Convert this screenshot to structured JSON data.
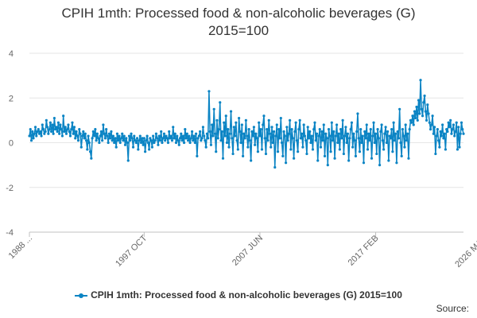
{
  "chart_data": {
    "type": "line",
    "title": "CPIH 1mth: Processed food & non-alcoholic beverages (G)",
    "subtitle": "2015=100",
    "xlabel": "",
    "ylabel": "",
    "x_tick_labels": [
      "1988 ...",
      "1997 OCT",
      "2007 JUN",
      "2017 FEB",
      "2026 MAR"
    ],
    "x_tick_index": [
      0,
      115,
      231,
      347,
      456
    ],
    "y_ticks": [
      4,
      2,
      0,
      -2,
      -4
    ],
    "ylim": [
      -4,
      4
    ],
    "grid": "horizontal",
    "legend_position": "bottom",
    "series": [
      {
        "name": "CPIH 1mth: Processed food & non-alcoholic beverages (G) 2015=100",
        "color": "#0b84c4",
        "values": [
          0.3,
          0.6,
          0.1,
          0.5,
          0.2,
          0.4,
          0.7,
          0.3,
          0.5,
          0.6,
          0.4,
          0.5,
          0.3,
          0.8,
          0.6,
          0.4,
          0.5,
          1.0,
          0.7,
          0.4,
          0.6,
          0.9,
          0.5,
          0.8,
          0.4,
          1.1,
          0.6,
          0.7,
          0.5,
          0.9,
          0.4,
          0.8,
          0.6,
          0.3,
          1.2,
          0.5,
          0.7,
          0.4,
          0.6,
          0.8,
          0.5,
          0.3,
          0.6,
          0.9,
          0.4,
          0.7,
          0.2,
          0.5,
          0.3,
          0.1,
          0.6,
          0.4,
          -0.2,
          0.3,
          0.5,
          0.2,
          0.4,
          0.1,
          -0.3,
          0.3,
          0.0,
          -0.4,
          -0.7,
          0.2,
          0.5,
          0.3,
          0.6,
          0.1,
          0.4,
          0.2,
          0.0,
          0.3,
          0.5,
          0.1,
          0.8,
          0.4,
          0.2,
          0.6,
          0.3,
          0.0,
          0.4,
          0.2,
          0.5,
          0.1,
          0.3,
          0.0,
          0.2,
          -0.2,
          0.4,
          0.1,
          0.3,
          0.0,
          0.2,
          0.4,
          0.1,
          0.3,
          -0.1,
          0.2,
          0.0,
          -0.8,
          0.3,
          0.1,
          0.4,
          0.2,
          -0.2,
          0.3,
          0.1,
          0.0,
          0.2,
          -0.3,
          0.1,
          0.3,
          0.0,
          0.2,
          -0.1,
          0.2,
          -0.4,
          0.1,
          0.3,
          0.0,
          -0.3,
          0.2,
          0.1,
          -0.2,
          0.3,
          0.0,
          0.1,
          0.4,
          0.2,
          -0.1,
          0.3,
          0.1,
          0.5,
          0.0,
          0.2,
          0.4,
          0.1,
          0.3,
          0.2,
          0.0,
          0.5,
          0.2,
          0.3,
          0.1,
          0.7,
          0.2,
          0.4,
          0.0,
          0.3,
          0.1,
          -0.1,
          0.2,
          0.4,
          0.1,
          0.3,
          0.0,
          0.6,
          0.2,
          0.4,
          0.1,
          0.3,
          0.0,
          0.2,
          0.5,
          0.1,
          0.3,
          0.0,
          0.4,
          -0.6,
          0.2,
          0.3,
          0.5,
          0.1,
          0.2,
          0.7,
          0.3,
          0.1,
          -0.2,
          0.4,
          0.2,
          2.3,
          0.5,
          -0.1,
          0.8,
          0.3,
          1.5,
          0.4,
          -0.4,
          1.0,
          0.2,
          0.6,
          1.8,
          0.1,
          0.5,
          -0.7,
          0.9,
          0.3,
          1.2,
          0.0,
          0.6,
          -0.2,
          0.4,
          1.4,
          0.2,
          -0.5,
          0.7,
          0.3,
          0.9,
          0.1,
          -0.3,
          1.1,
          0.5,
          0.0,
          0.8,
          -0.6,
          0.4,
          0.2,
          1.0,
          0.3,
          -0.2,
          0.6,
          0.1,
          -0.8,
          0.5,
          0.3,
          0.7,
          -0.1,
          0.4,
          0.2,
          -0.4,
          0.9,
          0.3,
          0.6,
          -0.3,
          0.8,
          1.2,
          0.2,
          -0.5,
          0.6,
          0.1,
          1.0,
          0.4,
          -0.2,
          0.7,
          0.0,
          0.5,
          -1.1,
          0.3,
          0.8,
          -0.4,
          0.6,
          0.2,
          1.1,
          0.0,
          -0.6,
          0.5,
          0.3,
          -0.9,
          0.7,
          0.1,
          0.4,
          1.0,
          -0.3,
          0.6,
          0.2,
          -0.7,
          0.5,
          0.9,
          0.1,
          -0.4,
          0.6,
          1.0,
          0.2,
          0.4,
          -0.2,
          0.8,
          0.3,
          0.1,
          -0.5,
          0.7,
          0.2,
          0.5,
          0.0,
          0.3,
          -0.3,
          0.6,
          0.9,
          0.1,
          0.4,
          -0.8,
          0.3,
          0.6,
          -0.2,
          0.5,
          0.1,
          0.8,
          -0.6,
          0.4,
          0.2,
          -1.0,
          0.6,
          0.3,
          -0.4,
          0.9,
          0.1,
          0.5,
          -0.7,
          0.3,
          0.8,
          0.0,
          0.4,
          -0.3,
          0.6,
          0.2,
          1.0,
          -0.5,
          0.3,
          0.7,
          0.0,
          0.4,
          -0.8,
          0.2,
          0.6,
          0.9,
          -0.2,
          0.4,
          0.1,
          -0.6,
          0.5,
          1.3,
          0.2,
          -0.4,
          0.6,
          0.0,
          0.3,
          -0.9,
          0.5,
          0.2,
          0.8,
          -0.3,
          0.4,
          0.1,
          0.6,
          -0.7,
          0.3,
          0.9,
          0.0,
          0.4,
          -0.5,
          0.6,
          0.2,
          -1.0,
          0.5,
          0.8,
          0.1,
          -0.3,
          0.4,
          0.7,
          0.0,
          0.5,
          -0.8,
          0.3,
          0.2,
          0.6,
          -0.4,
          0.9,
          0.1,
          0.4,
          -0.9,
          0.5,
          0.2,
          1.5,
          0.0,
          -0.6,
          0.6,
          0.3,
          -0.2,
          0.8,
          0.1,
          0.4,
          -0.7,
          0.6,
          1.0,
          0.9,
          1.2,
          0.8,
          1.4,
          1.1,
          1.6,
          1.0,
          1.9,
          1.3,
          2.8,
          1.5,
          1.2,
          1.8,
          2.1,
          1.4,
          1.0,
          1.7,
          1.3,
          0.9,
          0.6,
          0.8,
          1.2,
          0.4,
          0.7,
          -0.5,
          0.3,
          0.6,
          0.1,
          -0.2,
          0.5,
          0.3,
          0.8,
          0.2,
          0.4,
          -0.3,
          0.6,
          0.5,
          0.9,
          0.7,
          1.0,
          0.4,
          0.6,
          0.8,
          0.3,
          0.5,
          0.9,
          -0.3,
          0.7,
          -0.2,
          0.4,
          0.9,
          0.6,
          0.4
        ]
      }
    ],
    "source_label": "Source:"
  }
}
